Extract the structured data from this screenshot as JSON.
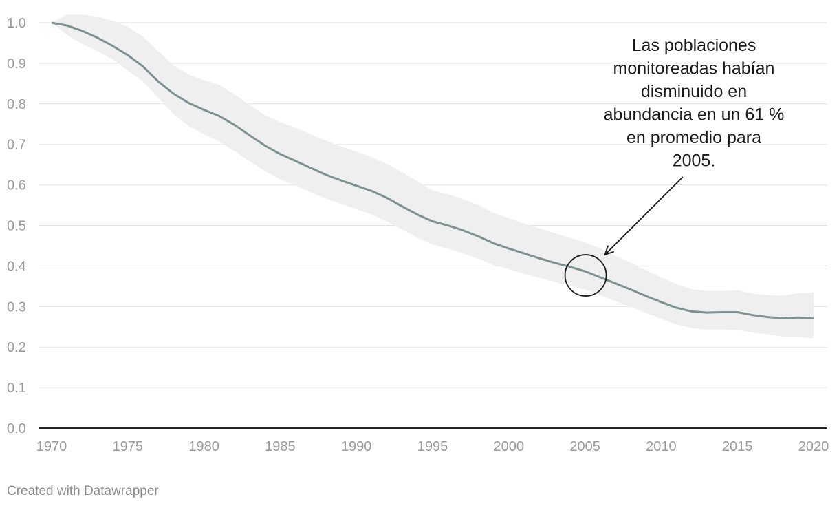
{
  "chart_data": {
    "type": "line",
    "x": [
      1970,
      1971,
      1972,
      1973,
      1974,
      1975,
      1976,
      1977,
      1978,
      1979,
      1980,
      1981,
      1982,
      1983,
      1984,
      1985,
      1986,
      1987,
      1988,
      1989,
      1990,
      1991,
      1992,
      1993,
      1994,
      1995,
      1996,
      1997,
      1998,
      1999,
      2000,
      2001,
      2002,
      2003,
      2004,
      2005,
      2006,
      2007,
      2008,
      2009,
      2010,
      2011,
      2012,
      2013,
      2014,
      2015,
      2016,
      2017,
      2018,
      2019,
      2020
    ],
    "series": [
      {
        "values": [
          1.0,
          0.993,
          0.98,
          0.963,
          0.943,
          0.92,
          0.892,
          0.855,
          0.825,
          0.802,
          0.785,
          0.77,
          0.748,
          0.722,
          0.697,
          0.676,
          0.659,
          0.642,
          0.625,
          0.611,
          0.598,
          0.585,
          0.568,
          0.547,
          0.527,
          0.51,
          0.5,
          0.488,
          0.473,
          0.456,
          0.443,
          0.431,
          0.419,
          0.408,
          0.398,
          0.387,
          0.372,
          0.357,
          0.342,
          0.326,
          0.311,
          0.297,
          0.288,
          0.285,
          0.286,
          0.286,
          0.279,
          0.274,
          0.271,
          0.273,
          0.271
        ],
        "upper": [
          1.0,
          1.02,
          1.02,
          1.015,
          1.005,
          0.99,
          0.965,
          0.93,
          0.895,
          0.872,
          0.858,
          0.847,
          0.823,
          0.797,
          0.772,
          0.755,
          0.741,
          0.725,
          0.709,
          0.695,
          0.682,
          0.668,
          0.652,
          0.631,
          0.609,
          0.586,
          0.577,
          0.565,
          0.55,
          0.531,
          0.518,
          0.505,
          0.493,
          0.481,
          0.47,
          0.458,
          0.443,
          0.425,
          0.408,
          0.39,
          0.372,
          0.355,
          0.343,
          0.338,
          0.338,
          0.34,
          0.332,
          0.328,
          0.327,
          0.333,
          0.334
        ],
        "lower": [
          1.0,
          0.97,
          0.948,
          0.93,
          0.91,
          0.882,
          0.855,
          0.815,
          0.775,
          0.745,
          0.725,
          0.707,
          0.683,
          0.658,
          0.634,
          0.614,
          0.598,
          0.582,
          0.566,
          0.553,
          0.54,
          0.527,
          0.51,
          0.49,
          0.47,
          0.453,
          0.443,
          0.431,
          0.418,
          0.403,
          0.392,
          0.381,
          0.371,
          0.361,
          0.351,
          0.342,
          0.328,
          0.313,
          0.299,
          0.284,
          0.27,
          0.256,
          0.247,
          0.243,
          0.243,
          0.242,
          0.236,
          0.231,
          0.226,
          0.225,
          0.222
        ]
      }
    ],
    "xticks": [
      "1970",
      "1975",
      "1980",
      "1985",
      "1990",
      "1995",
      "2000",
      "2005",
      "2010",
      "2015",
      "2020"
    ],
    "yticks": [
      "0.0",
      "0.1",
      "0.2",
      "0.3",
      "0.4",
      "0.5",
      "0.6",
      "0.7",
      "0.8",
      "0.9",
      "1.0"
    ],
    "xlim": [
      1970,
      2020
    ],
    "ylim": [
      0,
      1.0
    ],
    "grid": true,
    "annotation": {
      "lines": [
        "Las poblaciones",
        "monitoreadas habían",
        "disminuido en",
        "abundancia en un 61 %",
        "en promedio para",
        "2005."
      ],
      "target_x": 2005,
      "target_y": 0.387
    },
    "colors": {
      "line": "#7b9192",
      "band": "#efefef",
      "grid": "#e2e2e2",
      "axis": "#222222"
    }
  },
  "credit": "Created with Datawrapper"
}
